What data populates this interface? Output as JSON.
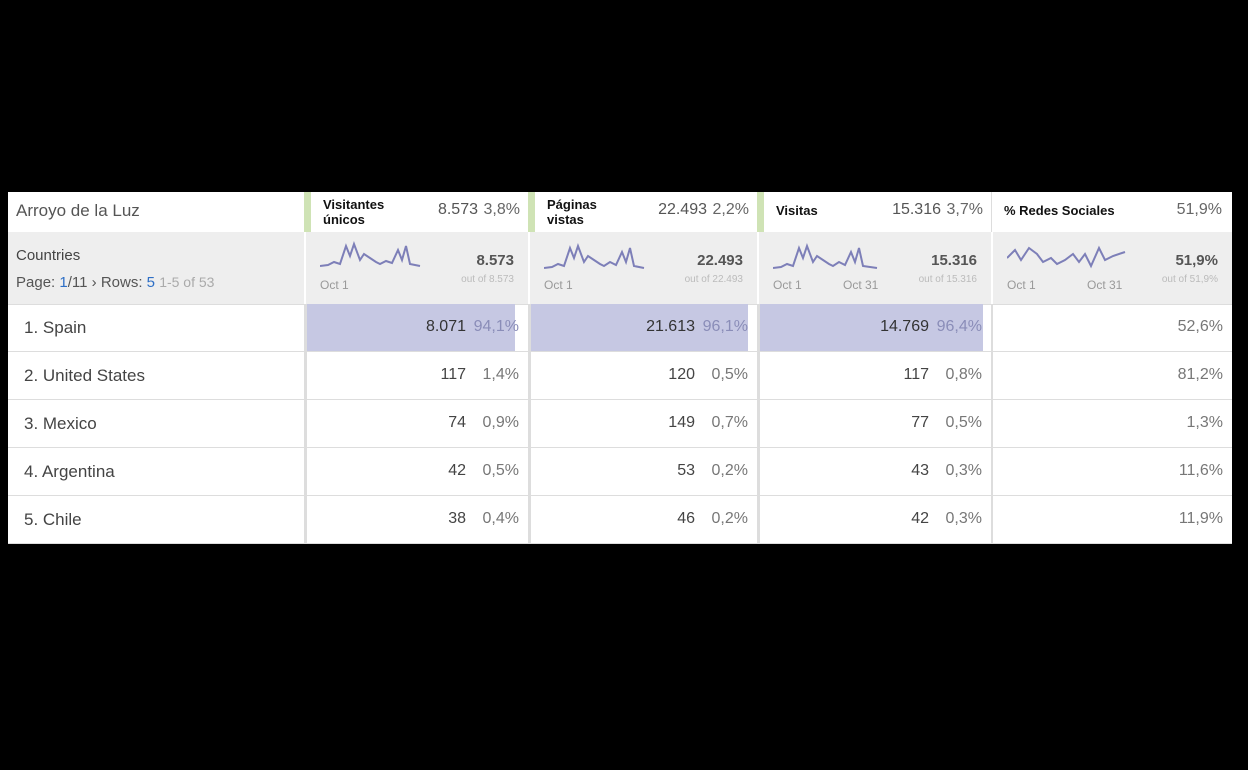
{
  "site_title": "Arroyo de la Luz",
  "metrics": [
    {
      "name_line1": "Visitantes",
      "name_line2": "únicos",
      "value": "8.573",
      "percent": "3,8%",
      "total": "8.573",
      "out_of": "out of 8.573",
      "spark_start": "Oct 1",
      "spark_end": ""
    },
    {
      "name_line1": "Páginas",
      "name_line2": "vistas",
      "value": "22.493",
      "percent": "2,2%",
      "total": "22.493",
      "out_of": "out of 22.493",
      "spark_start": "Oct 1",
      "spark_end": ""
    },
    {
      "name_line1": "Visitas",
      "name_line2": "",
      "value": "15.316",
      "percent": "3,7%",
      "total": "15.316",
      "out_of": "out of 15.316",
      "spark_start": "Oct 1",
      "spark_end": "Oct 31"
    },
    {
      "name_line1": "% Redes Sociales",
      "name_line2": "",
      "value": "",
      "percent": "51,9%",
      "total": "51,9%",
      "out_of": "out of 51,9%",
      "spark_start": "Oct 1",
      "spark_end": "Oct 31"
    }
  ],
  "dimension": {
    "label": "Countries",
    "page_label": "Page:",
    "page_current": "1",
    "page_total": "/11",
    "next_arrow": "›",
    "rows_label": "Rows:",
    "rows_value": "5",
    "range": "1-5 of 53"
  },
  "colors": {
    "highlight_bar": "#c6c8e3",
    "sparkline": "#7d7fb8",
    "header_accent": "#cfe3b5",
    "link": "#2e6fc6"
  },
  "rows": [
    {
      "label": "1. Spain",
      "cells": [
        {
          "value": "8.071",
          "percent": "94,1%",
          "fraction": 0.941
        },
        {
          "value": "21.613",
          "percent": "96,1%",
          "fraction": 0.961
        },
        {
          "value": "14.769",
          "percent": "96,4%",
          "fraction": 0.964
        }
      ],
      "social": "52,6%",
      "highlight": true
    },
    {
      "label": "2. United States",
      "cells": [
        {
          "value": "117",
          "percent": "1,4%"
        },
        {
          "value": "120",
          "percent": "0,5%"
        },
        {
          "value": "117",
          "percent": "0,8%"
        }
      ],
      "social": "81,2%"
    },
    {
      "label": "3. Mexico",
      "cells": [
        {
          "value": "74",
          "percent": "0,9%"
        },
        {
          "value": "149",
          "percent": "0,7%"
        },
        {
          "value": "77",
          "percent": "0,5%"
        }
      ],
      "social": "1,3%"
    },
    {
      "label": "4. Argentina",
      "cells": [
        {
          "value": "42",
          "percent": "0,5%"
        },
        {
          "value": "53",
          "percent": "0,2%"
        },
        {
          "value": "43",
          "percent": "0,3%"
        }
      ],
      "social": "11,6%"
    },
    {
      "label": "5. Chile",
      "cells": [
        {
          "value": "38",
          "percent": "0,4%"
        },
        {
          "value": "46",
          "percent": "0,2%"
        },
        {
          "value": "42",
          "percent": "0,3%"
        }
      ],
      "social": "11,9%"
    }
  ]
}
